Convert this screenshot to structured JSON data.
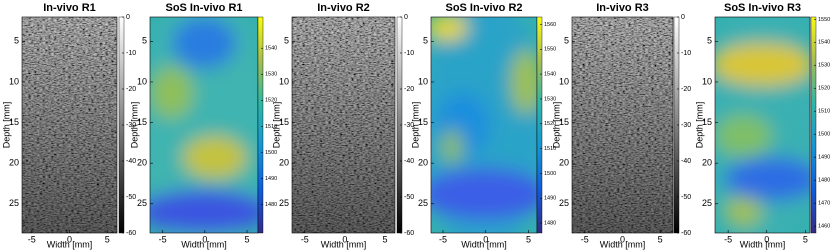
{
  "chart_data": [
    {
      "type": "bmode",
      "title": "In-vivo R1",
      "xlabel": "Width [mm]",
      "ylabel": "Depth [mm]",
      "xlim": [
        -6.3,
        6.3
      ],
      "xticks": [
        -5,
        0,
        5
      ],
      "ylim": [
        2,
        28.6
      ],
      "y_inverted": true,
      "yticks": [
        5,
        10,
        15,
        20,
        25
      ],
      "colorbar": {
        "colormap": "gray",
        "lim": [
          -60,
          0
        ],
        "ticks": [
          0,
          -10,
          -20,
          -30,
          -40,
          -50,
          -60
        ]
      }
    },
    {
      "type": "sos",
      "title": "SoS In-vivo R1",
      "xlabel": "Width [mm]",
      "ylabel": "Depth [mm]",
      "xlim": [
        -6.5,
        6.3
      ],
      "xticks": [
        -5,
        0,
        5
      ],
      "ylim": [
        2,
        28.6
      ],
      "y_inverted": true,
      "yticks": [
        5,
        10,
        15,
        20,
        25
      ],
      "colorbar": {
        "colormap": "parula",
        "lim": [
          1469,
          1552
        ],
        "ticks": [
          1540,
          1530,
          1520,
          1510,
          1500,
          1490,
          1480
        ]
      }
    },
    {
      "type": "bmode",
      "title": "In-vivo R2",
      "xlabel": "Width [mm]",
      "ylabel": "Depth [mm]",
      "xlim": [
        -6.6,
        6.25
      ],
      "xticks": [
        -5,
        0,
        5
      ],
      "ylim": [
        2,
        28.6
      ],
      "y_inverted": true,
      "yticks": [
        5,
        10,
        15,
        20,
        25
      ],
      "colorbar": {
        "colormap": "gray",
        "lim": [
          -60,
          0
        ],
        "ticks": [
          0,
          -10,
          -20,
          -30,
          -40,
          -50,
          -60
        ]
      }
    },
    {
      "type": "sos",
      "title": "SoS In-vivo R2",
      "xlabel": "Width [mm]",
      "ylabel": "Depth [mm]",
      "xlim": [
        -6.4,
        6.0
      ],
      "xticks": [
        -5,
        0,
        5
      ],
      "ylim": [
        2,
        28.6
      ],
      "y_inverted": true,
      "yticks": [
        5,
        10,
        15,
        20,
        25
      ],
      "colorbar": {
        "colormap": "parula",
        "lim": [
          1476,
          1563
        ],
        "ticks": [
          1560,
          1550,
          1540,
          1530,
          1520,
          1510,
          1500,
          1490,
          1480
        ]
      }
    },
    {
      "type": "bmode",
      "title": "In-vivo R3",
      "xlabel": "Width [mm]",
      "ylabel": "Depth [mm]",
      "xlim": [
        -6.7,
        6.7
      ],
      "xticks": [
        -5,
        0,
        5
      ],
      "ylim": [
        2,
        28.6
      ],
      "y_inverted": true,
      "yticks": [
        5,
        10,
        15,
        20,
        25
      ],
      "colorbar": {
        "colormap": "gray",
        "lim": [
          -60,
          0
        ],
        "ticks": [
          0,
          -10,
          -20,
          -30,
          -40,
          -50,
          -60
        ]
      }
    },
    {
      "type": "sos",
      "title": "SoS In-vivo R3",
      "xlabel": "Width [mm]",
      "ylabel": "Depth [mm]",
      "xlim": [
        -6.7,
        5.6
      ],
      "xticks": [
        -5,
        0,
        5
      ],
      "ylim": [
        2,
        28.6
      ],
      "y_inverted": true,
      "yticks": [
        5,
        10,
        15,
        20,
        25
      ],
      "colorbar": {
        "colormap": "parula",
        "lim": [
          1457,
          1551
        ],
        "ticks": [
          1550,
          1540,
          1530,
          1520,
          1510,
          1500,
          1490,
          1480,
          1470,
          1460
        ]
      }
    }
  ]
}
